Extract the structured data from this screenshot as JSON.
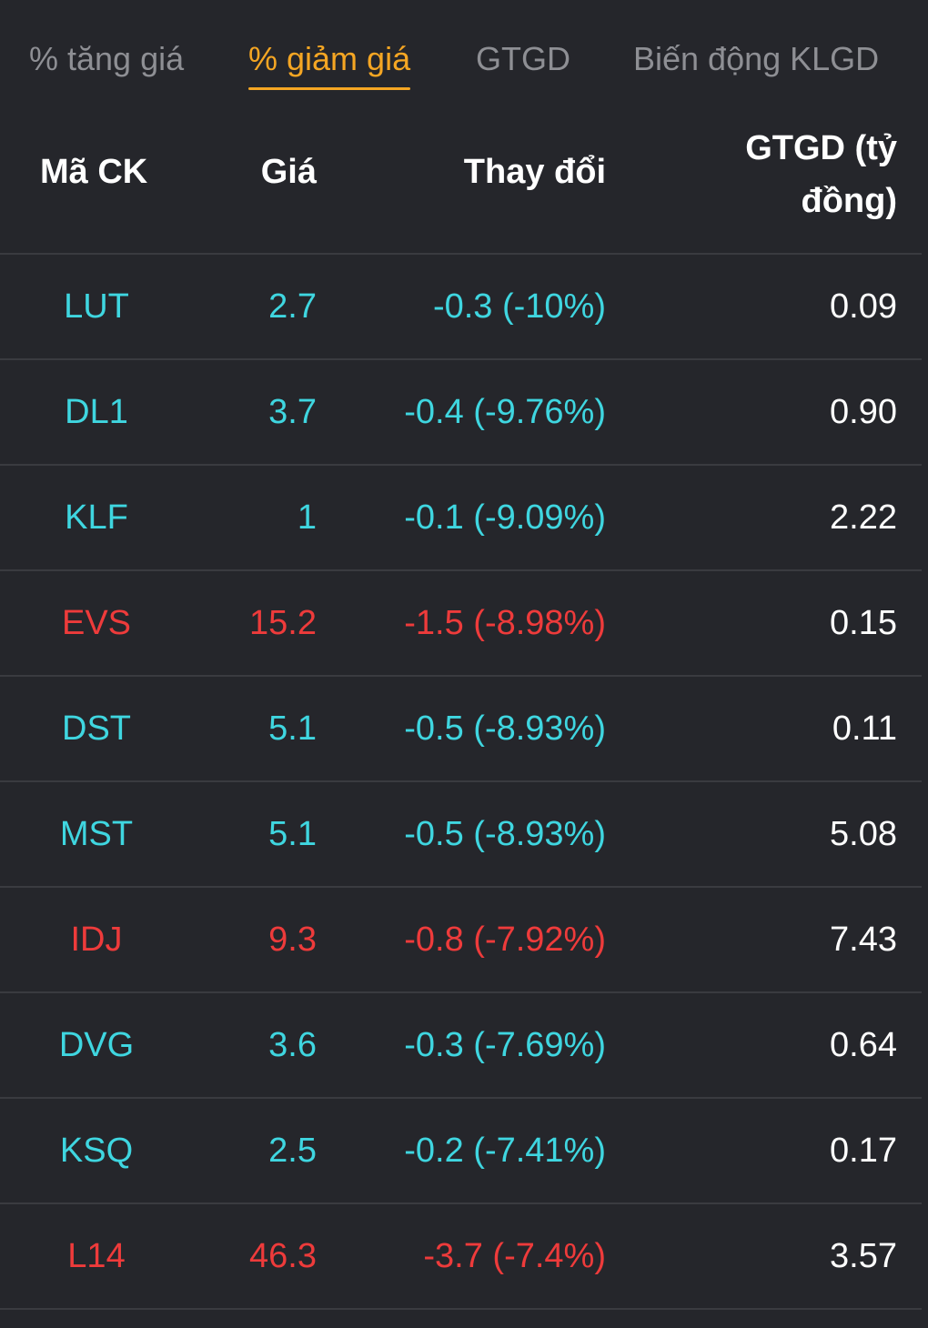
{
  "tabs": [
    {
      "label": "% tăng giá",
      "active": false
    },
    {
      "label": "% giảm giá",
      "active": true
    },
    {
      "label": "GTGD",
      "active": false
    },
    {
      "label": "Biến động KLGD",
      "active": false
    }
  ],
  "columns": {
    "symbol": "Mã CK",
    "price": "Giá",
    "change": "Thay đổi",
    "value_line1": "GTGD (tỷ",
    "value_line2": "đồng)"
  },
  "colors": {
    "background": "#25262b",
    "accent": "#f5a623",
    "cyan": "#3fd6e0",
    "red": "#ee3b3b",
    "tab_inactive": "#8e8f94"
  },
  "rows": [
    {
      "symbol": "LUT",
      "price": "2.7",
      "change": "-0.3 (-10%)",
      "value": "0.09",
      "color": "#3fd6e0"
    },
    {
      "symbol": "DL1",
      "price": "3.7",
      "change": "-0.4 (-9.76%)",
      "value": "0.90",
      "color": "#3fd6e0"
    },
    {
      "symbol": "KLF",
      "price": "1",
      "change": "-0.1 (-9.09%)",
      "value": "2.22",
      "color": "#3fd6e0"
    },
    {
      "symbol": "EVS",
      "price": "15.2",
      "change": "-1.5 (-8.98%)",
      "value": "0.15",
      "color": "#ee3b3b"
    },
    {
      "symbol": "DST",
      "price": "5.1",
      "change": "-0.5 (-8.93%)",
      "value": "0.11",
      "color": "#3fd6e0"
    },
    {
      "symbol": "MST",
      "price": "5.1",
      "change": "-0.5 (-8.93%)",
      "value": "5.08",
      "color": "#3fd6e0"
    },
    {
      "symbol": "IDJ",
      "price": "9.3",
      "change": "-0.8 (-7.92%)",
      "value": "7.43",
      "color": "#ee3b3b"
    },
    {
      "symbol": "DVG",
      "price": "3.6",
      "change": "-0.3 (-7.69%)",
      "value": "0.64",
      "color": "#3fd6e0"
    },
    {
      "symbol": "KSQ",
      "price": "2.5",
      "change": "-0.2 (-7.41%)",
      "value": "0.17",
      "color": "#3fd6e0"
    },
    {
      "symbol": "L14",
      "price": "46.3",
      "change": "-3.7 (-7.4%)",
      "value": "3.57",
      "color": "#ee3b3b"
    }
  ]
}
